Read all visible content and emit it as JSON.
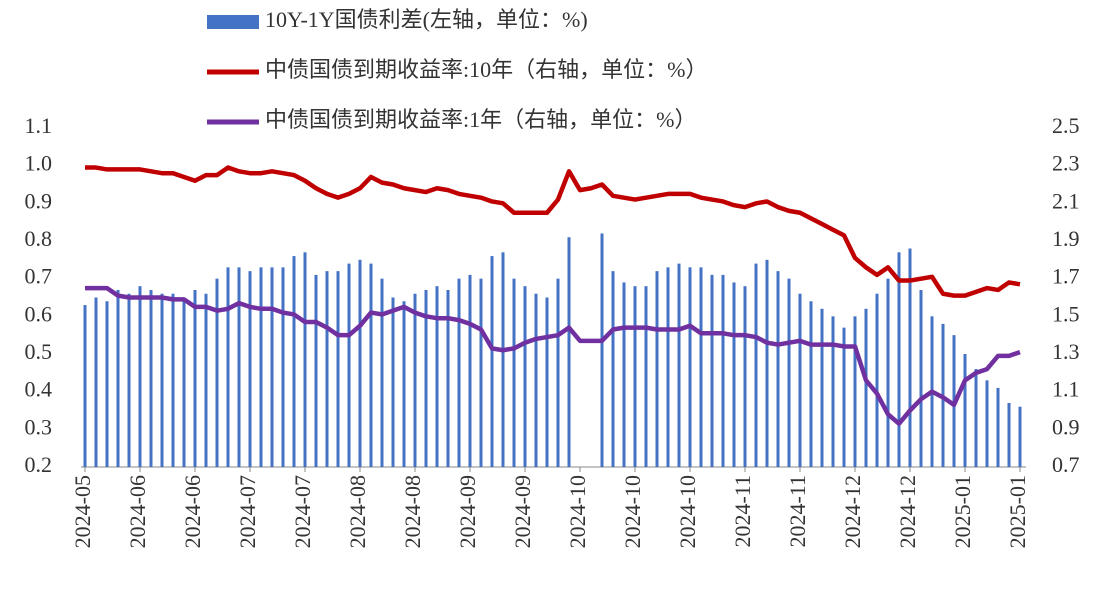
{
  "chart_data": {
    "type": "bar-line",
    "categories": [
      "2024-05",
      null,
      null,
      null,
      null,
      "2024-06",
      null,
      null,
      null,
      null,
      "2024-06",
      null,
      null,
      null,
      null,
      "2024-07",
      null,
      null,
      null,
      null,
      "2024-07",
      null,
      null,
      null,
      null,
      "2024-08",
      null,
      null,
      null,
      null,
      "2024-08",
      null,
      null,
      null,
      null,
      "2024-09",
      null,
      null,
      null,
      null,
      "2024-09",
      null,
      null,
      null,
      null,
      "2024-10",
      null,
      null,
      null,
      null,
      "2024-10",
      null,
      null,
      null,
      null,
      "2024-10",
      null,
      null,
      null,
      null,
      "2024-11",
      null,
      null,
      null,
      null,
      "2024-11",
      null,
      null,
      null,
      null,
      "2024-12",
      null,
      null,
      null,
      null,
      "2024-12",
      null,
      null,
      null,
      null,
      "2025-01",
      null,
      null,
      null,
      null,
      "2025-01"
    ],
    "series": [
      {
        "name": "10Y-1Y国债利差(左轴，单位：%)",
        "type": "bar",
        "axis": "y",
        "color": "#4472c4",
        "values": [
          0.63,
          0.65,
          0.64,
          0.67,
          0.66,
          0.68,
          0.67,
          0.66,
          0.66,
          0.65,
          0.67,
          0.66,
          0.7,
          0.73,
          0.73,
          0.72,
          0.73,
          0.73,
          0.73,
          0.76,
          0.77,
          0.71,
          0.72,
          0.72,
          0.74,
          0.75,
          0.74,
          0.7,
          0.65,
          0.64,
          0.66,
          0.67,
          0.68,
          0.67,
          0.7,
          0.71,
          0.7,
          0.76,
          0.77,
          0.7,
          0.68,
          0.66,
          0.65,
          0.7,
          0.81,
          null,
          null,
          0.82,
          0.72,
          0.69,
          0.68,
          0.68,
          0.72,
          0.73,
          0.74,
          0.73,
          0.73,
          0.71,
          0.71,
          0.69,
          0.68,
          0.74,
          0.75,
          0.72,
          0.7,
          0.66,
          0.64,
          0.62,
          0.6,
          0.57,
          0.6,
          0.62,
          0.66,
          0.7,
          0.77,
          0.78,
          0.67,
          0.6,
          0.58,
          0.55,
          0.5,
          0.46,
          0.43,
          0.41,
          0.37,
          0.36
        ]
      },
      {
        "name": "中债国债到期收益率:10年（右轴，单位：%）",
        "type": "line",
        "axis": "y2",
        "color": "#c00000",
        "values": [
          2.29,
          2.29,
          2.28,
          2.28,
          2.28,
          2.28,
          2.27,
          2.26,
          2.26,
          2.24,
          2.22,
          2.25,
          2.25,
          2.29,
          2.27,
          2.26,
          2.26,
          2.27,
          2.26,
          2.25,
          2.22,
          2.18,
          2.15,
          2.13,
          2.15,
          2.18,
          2.24,
          2.21,
          2.2,
          2.18,
          2.17,
          2.16,
          2.18,
          2.17,
          2.15,
          2.14,
          2.13,
          2.11,
          2.1,
          2.05,
          2.05,
          2.05,
          2.05,
          2.12,
          2.27,
          2.17,
          2.18,
          2.2,
          2.14,
          2.13,
          2.12,
          2.13,
          2.14,
          2.15,
          2.15,
          2.15,
          2.13,
          2.12,
          2.11,
          2.09,
          2.08,
          2.1,
          2.11,
          2.08,
          2.06,
          2.05,
          2.02,
          1.99,
          1.96,
          1.93,
          1.81,
          1.76,
          1.72,
          1.76,
          1.69,
          1.69,
          1.7,
          1.71,
          1.62,
          1.61,
          1.61,
          1.63,
          1.65,
          1.64,
          1.68,
          1.67
        ]
      },
      {
        "name": "中债国债到期收益率:1年（右轴，单位：%）",
        "type": "line",
        "axis": "y2",
        "color": "#7030a0",
        "values": [
          1.65,
          1.65,
          1.65,
          1.61,
          1.6,
          1.6,
          1.6,
          1.6,
          1.59,
          1.59,
          1.55,
          1.55,
          1.53,
          1.54,
          1.57,
          1.55,
          1.54,
          1.54,
          1.52,
          1.51,
          1.47,
          1.47,
          1.44,
          1.4,
          1.4,
          1.45,
          1.52,
          1.51,
          1.53,
          1.55,
          1.52,
          1.5,
          1.49,
          1.49,
          1.48,
          1.46,
          1.43,
          1.33,
          1.32,
          1.33,
          1.36,
          1.38,
          1.39,
          1.4,
          1.44,
          1.37,
          1.37,
          1.37,
          1.43,
          1.44,
          1.44,
          1.44,
          1.43,
          1.43,
          1.43,
          1.45,
          1.41,
          1.41,
          1.41,
          1.4,
          1.4,
          1.39,
          1.36,
          1.35,
          1.36,
          1.37,
          1.35,
          1.35,
          1.35,
          1.34,
          1.34,
          1.16,
          1.09,
          0.98,
          0.93,
          1.0,
          1.06,
          1.1,
          1.07,
          1.03,
          1.16,
          1.2,
          1.22,
          1.29,
          1.29,
          1.31
        ]
      }
    ],
    "ylim": [
      0.2,
      1.1
    ],
    "yticks": [
      0.2,
      0.3,
      0.4,
      0.5,
      0.6,
      0.7,
      0.8,
      0.9,
      {
        "value": 1,
        "label": "1.0"
      },
      1.1
    ],
    "y2lim": [
      0.7,
      2.5
    ],
    "y2ticks": [
      0.7,
      0.9,
      1.1,
      1.3,
      1.5,
      1.7,
      1.9,
      2.1,
      2.3,
      2.5
    ],
    "grid": false,
    "legend": "top"
  }
}
